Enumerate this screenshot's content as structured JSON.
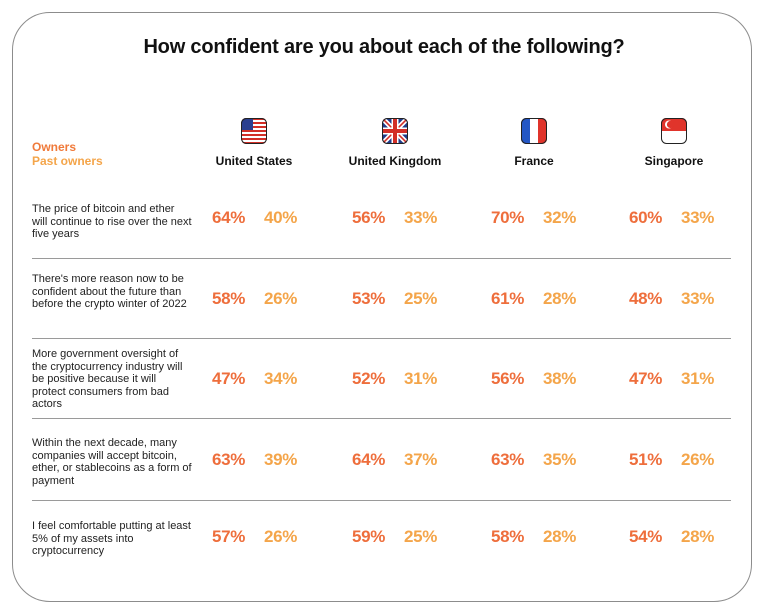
{
  "title": "How confident are you about each of the following?",
  "legend": {
    "owners": "Owners",
    "past_owners": "Past owners"
  },
  "colors": {
    "owners": "#ee6e3c",
    "past_owners": "#f4a54a"
  },
  "countries": [
    {
      "name": "United States",
      "flag_icon": "us-flag-icon"
    },
    {
      "name": "United Kingdom",
      "flag_icon": "uk-flag-icon"
    },
    {
      "name": "France",
      "flag_icon": "france-flag-icon"
    },
    {
      "name": "Singapore",
      "flag_icon": "singapore-flag-icon"
    }
  ],
  "rows": [
    {
      "label": "The price of bitcoin and ether will continue to rise over the next five years",
      "values": [
        [
          "64%",
          "40%"
        ],
        [
          "56%",
          "33%"
        ],
        [
          "70%",
          "32%"
        ],
        [
          "60%",
          "33%"
        ]
      ]
    },
    {
      "label": "There's more reason now to be confident about the future than before the crypto winter of 2022",
      "values": [
        [
          "58%",
          "26%"
        ],
        [
          "53%",
          "25%"
        ],
        [
          "61%",
          "28%"
        ],
        [
          "48%",
          "33%"
        ]
      ]
    },
    {
      "label": "More government oversight of the cryptocurrency industry will be positive because it will protect consumers from bad actors",
      "values": [
        [
          "47%",
          "34%"
        ],
        [
          "52%",
          "31%"
        ],
        [
          "56%",
          "38%"
        ],
        [
          "47%",
          "31%"
        ]
      ]
    },
    {
      "label": "Within the next decade, many companies will accept bitcoin, ether, or stablecoins as a form of payment",
      "values": [
        [
          "63%",
          "39%"
        ],
        [
          "64%",
          "37%"
        ],
        [
          "63%",
          "35%"
        ],
        [
          "51%",
          "26%"
        ]
      ]
    },
    {
      "label": "I feel comfortable putting at least 5% of my assets into cryptocurrency",
      "values": [
        [
          "57%",
          "26%"
        ],
        [
          "59%",
          "25%"
        ],
        [
          "58%",
          "28%"
        ],
        [
          "54%",
          "28%"
        ]
      ]
    }
  ],
  "chart_data": {
    "type": "table",
    "title": "How confident are you about each of the following?",
    "columns": [
      "United States",
      "United Kingdom",
      "France",
      "Singapore"
    ],
    "series": [
      {
        "name": "Owners",
        "values": [
          [
            64,
            56,
            70,
            60
          ],
          [
            58,
            53,
            61,
            48
          ],
          [
            47,
            52,
            56,
            47
          ],
          [
            63,
            64,
            63,
            51
          ],
          [
            57,
            59,
            58,
            54
          ]
        ]
      },
      {
        "name": "Past owners",
        "values": [
          [
            40,
            33,
            32,
            33
          ],
          [
            26,
            25,
            28,
            33
          ],
          [
            34,
            31,
            38,
            31
          ],
          [
            39,
            37,
            35,
            26
          ],
          [
            26,
            25,
            28,
            28
          ]
        ]
      }
    ],
    "rows": [
      "The price of bitcoin and ether will continue to rise over the next five years",
      "There's more reason now to be confident about the future than before the crypto winter of 2022",
      "More government oversight of the cryptocurrency industry will be positive because it will protect consumers from bad actors",
      "Within the next decade, many companies will accept bitcoin, ether, or stablecoins as a form of payment",
      "I feel comfortable putting at least 5% of my assets into cryptocurrency"
    ]
  }
}
